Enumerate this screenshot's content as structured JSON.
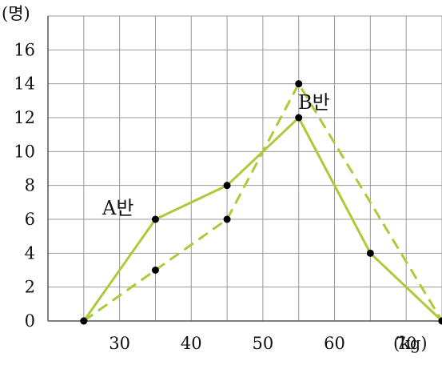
{
  "chart_data": {
    "type": "line",
    "y_unit_label": "(명)",
    "x_unit_label": "(kg)",
    "x_ticks": [
      30,
      40,
      50,
      60,
      70
    ],
    "y_ticks": [
      0,
      2,
      4,
      6,
      8,
      10,
      12,
      14,
      16
    ],
    "xlim": [
      20,
      75
    ],
    "ylim": [
      0,
      18
    ],
    "grid": true,
    "series": [
      {
        "name": "A반",
        "line_style": "solid",
        "color": "#a8cc3a",
        "x": [
          25,
          35,
          45,
          55,
          65,
          75
        ],
        "y": [
          0,
          6,
          8,
          12,
          4,
          0
        ]
      },
      {
        "name": "B반",
        "line_style": "dashed",
        "color": "#a8cc3a",
        "x": [
          25,
          35,
          45,
          55,
          75
        ],
        "y": [
          0,
          3,
          6,
          14,
          0
        ]
      }
    ],
    "point_color": "#000000",
    "grid_color": "#999999"
  }
}
